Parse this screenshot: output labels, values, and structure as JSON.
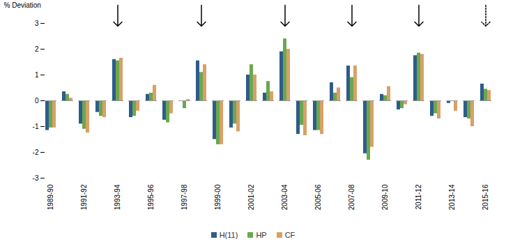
{
  "chart_data": {
    "type": "bar",
    "y_label": "% Deviation",
    "categories": [
      "1989-90",
      null,
      "1991-92",
      null,
      "1993-94",
      null,
      "1995-96",
      null,
      "1997-98",
      null,
      "1999-00",
      null,
      "2001-02",
      null,
      "2003-04",
      null,
      "2005-06",
      null,
      "2007-08",
      null,
      "2009-10",
      null,
      "2011-12",
      null,
      "2013-14",
      null,
      "2015-16"
    ],
    "series": [
      {
        "name": "H(11)",
        "color": "#2e5c8a",
        "values": [
          -1.15,
          0.35,
          -0.9,
          -0.45,
          1.6,
          -0.65,
          0.25,
          -0.75,
          0,
          1.55,
          -1.5,
          -1.05,
          1.0,
          0.3,
          1.9,
          -1.3,
          -1.15,
          0.7,
          1.35,
          -2.05,
          0.25,
          -0.35,
          1.75,
          -0.6,
          -0.1,
          -0.65,
          0.65
        ]
      },
      {
        "name": "HP",
        "color": "#6aa84f",
        "values": [
          -1.05,
          0.25,
          -1.1,
          -0.6,
          1.55,
          -0.6,
          0.3,
          -0.85,
          -0.3,
          1.1,
          -1.7,
          -0.9,
          1.4,
          0.75,
          2.4,
          -0.95,
          -1.15,
          0.3,
          0.9,
          -2.3,
          0.2,
          -0.3,
          1.85,
          -0.5,
          0,
          -0.7,
          0.45
        ]
      },
      {
        "name": "CF",
        "color": "#d9a066",
        "values": [
          -1.05,
          0.1,
          -1.25,
          -0.65,
          1.65,
          -0.4,
          0.6,
          -0.5,
          0.05,
          1.4,
          -1.7,
          -1.2,
          1.0,
          0.35,
          2.0,
          -1.35,
          -1.3,
          0.5,
          1.35,
          -1.8,
          0.55,
          -0.15,
          1.8,
          -0.7,
          -0.4,
          -1.0,
          0.4
        ]
      }
    ],
    "arrow_positions": [
      4,
      9,
      14,
      18,
      22
    ],
    "dotted_arrow_positions": [
      26
    ],
    "ylim": [
      -3,
      3
    ],
    "yticks": [
      -3,
      -2,
      -1,
      0,
      1,
      2,
      3
    ],
    "grid": false,
    "legend": "bottom"
  }
}
